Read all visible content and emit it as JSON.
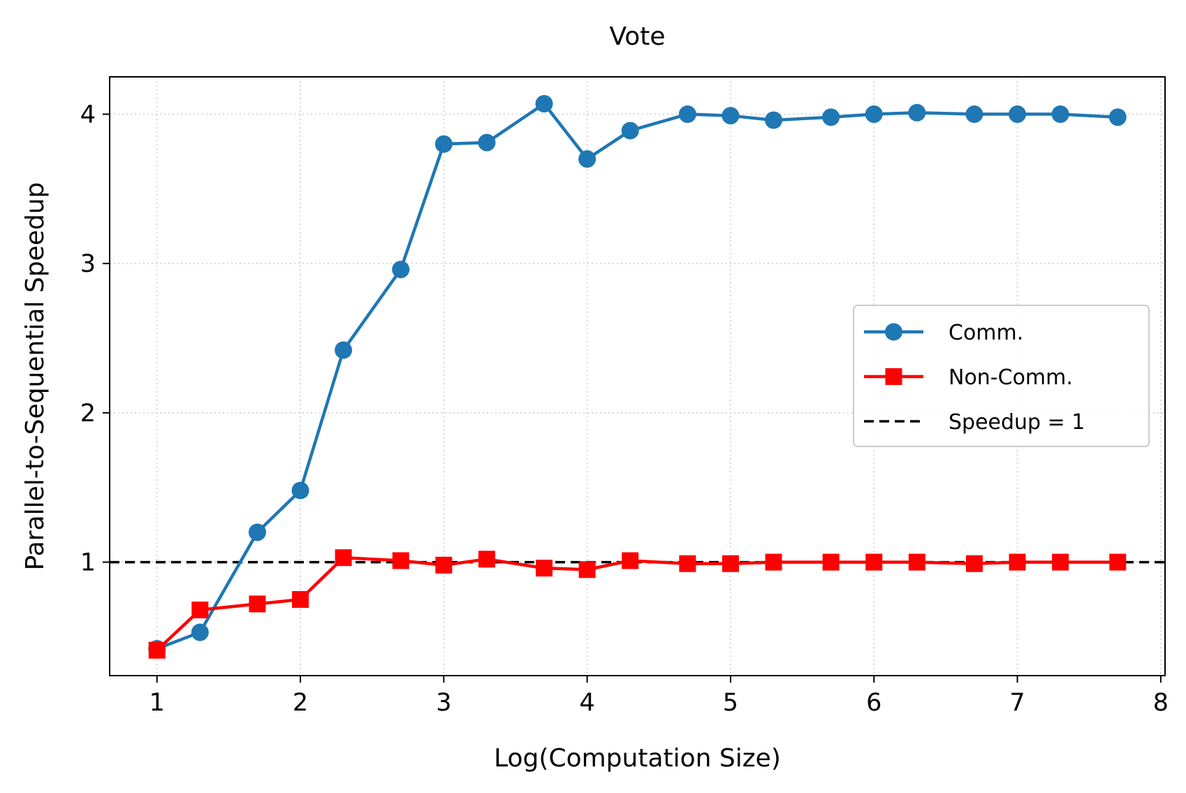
{
  "chart_data": {
    "type": "line",
    "title": "Vote",
    "xlabel": "Log(Computation Size)",
    "ylabel": "Parallel-to-Sequential Speedup",
    "xlim": [
      0.67,
      8.03
    ],
    "ylim": [
      0.24,
      4.25
    ],
    "xticks": [
      "1",
      "2",
      "3",
      "4",
      "5",
      "6",
      "7",
      "8"
    ],
    "yticks": [
      "1",
      "2",
      "3",
      "4"
    ],
    "grid": true,
    "legend_position": "center-right",
    "series": [
      {
        "name": "Comm.",
        "color": "#1f77b4",
        "marker": "circle",
        "x": [
          1.0,
          1.3,
          1.7,
          2.0,
          2.3,
          2.7,
          3.0,
          3.3,
          3.7,
          4.0,
          4.3,
          4.7,
          5.0,
          5.3,
          5.7,
          6.0,
          6.3,
          6.7,
          7.0,
          7.3,
          7.7
        ],
        "values": [
          0.42,
          0.53,
          1.2,
          1.48,
          2.42,
          2.96,
          3.8,
          3.81,
          4.07,
          3.7,
          3.89,
          4.0,
          3.99,
          3.96,
          3.98,
          4.0,
          4.01,
          4.0,
          4.0,
          4.0,
          3.98
        ]
      },
      {
        "name": "Non-Comm.",
        "color": "#ff0000",
        "marker": "square",
        "x": [
          1.0,
          1.3,
          1.7,
          2.0,
          2.3,
          2.7,
          3.0,
          3.3,
          3.7,
          4.0,
          4.3,
          4.7,
          5.0,
          5.3,
          5.7,
          6.0,
          6.3,
          6.7,
          7.0,
          7.3,
          7.7
        ],
        "values": [
          0.41,
          0.68,
          0.72,
          0.75,
          1.03,
          1.01,
          0.98,
          1.02,
          0.96,
          0.95,
          1.01,
          0.99,
          0.99,
          1.0,
          1.0,
          1.0,
          1.0,
          0.99,
          1.0,
          1.0,
          1.0
        ]
      }
    ],
    "reference_line": {
      "name": "Speedup = 1",
      "y": 1,
      "color": "#000000",
      "style": "dashed"
    }
  }
}
